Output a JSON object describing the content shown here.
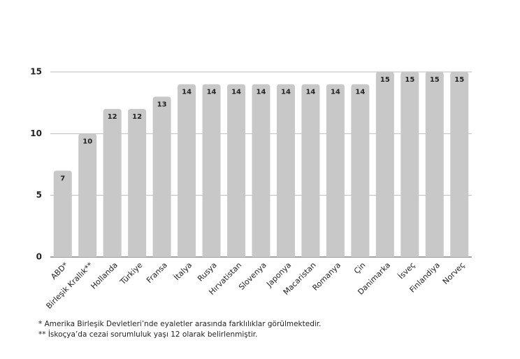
{
  "chart_data": {
    "type": "bar",
    "categories": [
      "ABD*",
      "Birleşik Krallık**",
      "Hollanda",
      "Türkiye",
      "Fransa",
      "İtalya",
      "Rusya",
      "Hırvatistan",
      "Slovenya",
      "Japonya",
      "Macaristan",
      "Romanya",
      "Çin",
      "Danimarka",
      "İsveç",
      "Finlandiya",
      "Norveç"
    ],
    "values": [
      7,
      10,
      12,
      12,
      13,
      14,
      14,
      14,
      14,
      14,
      14,
      14,
      14,
      15,
      15,
      15,
      15
    ],
    "color": "#c8c8c8",
    "ylim": [
      0,
      15
    ],
    "yticks": [
      0,
      5,
      10,
      15
    ],
    "grid": true,
    "notes": [
      "*  Amerika Birleşik Devletleri’nde eyaletler arasında farklılıklar görülmektedir.",
      "** İskoçya’da cezai sorumluluk yaşı 12 olarak belirlenmiştir."
    ]
  }
}
